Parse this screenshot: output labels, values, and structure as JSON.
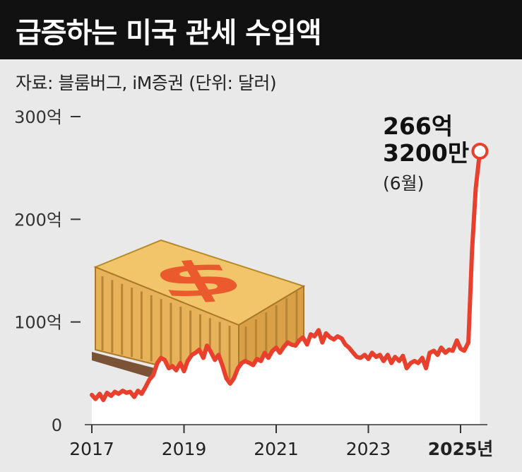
{
  "title": "급증하는 미국 관세 수입액",
  "source": "자료: 블룸버그, iM증권  (단위: 달러)",
  "colors": {
    "line": "#e8402c",
    "area": "#ffffff",
    "background": "#e9e9e9",
    "title_bg": "#111111"
  },
  "illustration": "cargo-container-dollar-icon",
  "annotation": {
    "line1": "266억",
    "line2": "3200만",
    "line3": "(6월)"
  },
  "chart_data": {
    "type": "line",
    "title": "급증하는 미국 관세 수입액",
    "xlabel": "",
    "ylabel": "",
    "xlim": [
      2017,
      2025.5
    ],
    "ylim": [
      0,
      300
    ],
    "y_ticks": [
      {
        "value": 300,
        "label": "300억"
      },
      {
        "value": 200,
        "label": "200억"
      },
      {
        "value": 100,
        "label": "100억"
      },
      {
        "value": 0,
        "label": "0"
      }
    ],
    "x_ticks": [
      {
        "value": 2017,
        "label": "2017"
      },
      {
        "value": 2019,
        "label": "2019"
      },
      {
        "value": 2021,
        "label": "2021"
      },
      {
        "value": 2023,
        "label": "2023"
      },
      {
        "value": 2025,
        "label": "2025년"
      }
    ],
    "series": [
      {
        "unit": "억 달러",
        "x": [
          2017.0,
          2017.08,
          2017.17,
          2017.25,
          2017.33,
          2017.42,
          2017.5,
          2017.58,
          2017.67,
          2017.75,
          2017.83,
          2017.92,
          2018.0,
          2018.08,
          2018.17,
          2018.25,
          2018.33,
          2018.42,
          2018.5,
          2018.58,
          2018.67,
          2018.75,
          2018.83,
          2018.92,
          2019.0,
          2019.08,
          2019.17,
          2019.25,
          2019.33,
          2019.42,
          2019.5,
          2019.58,
          2019.67,
          2019.75,
          2019.83,
          2019.92,
          2020.0,
          2020.08,
          2020.17,
          2020.25,
          2020.33,
          2020.42,
          2020.5,
          2020.58,
          2020.67,
          2020.75,
          2020.83,
          2020.92,
          2021.0,
          2021.08,
          2021.17,
          2021.25,
          2021.33,
          2021.42,
          2021.5,
          2021.58,
          2021.67,
          2021.75,
          2021.83,
          2021.92,
          2022.0,
          2022.08,
          2022.17,
          2022.25,
          2022.33,
          2022.42,
          2022.5,
          2022.58,
          2022.67,
          2022.75,
          2022.83,
          2022.92,
          2023.0,
          2023.08,
          2023.17,
          2023.25,
          2023.33,
          2023.42,
          2023.5,
          2023.58,
          2023.67,
          2023.75,
          2023.83,
          2023.92,
          2024.0,
          2024.08,
          2024.17,
          2024.25,
          2024.33,
          2024.42,
          2024.5,
          2024.58,
          2024.67,
          2024.75,
          2024.83,
          2024.92,
          2025.0,
          2025.08,
          2025.17,
          2025.25,
          2025.33,
          2025.42
        ],
        "values": [
          29,
          25,
          30,
          24,
          31,
          28,
          32,
          30,
          33,
          31,
          32,
          27,
          33,
          30,
          37,
          44,
          48,
          60,
          65,
          63,
          55,
          57,
          53,
          60,
          52,
          62,
          68,
          70,
          73,
          65,
          77,
          71,
          63,
          68,
          58,
          45,
          40,
          45,
          55,
          60,
          62,
          60,
          58,
          64,
          62,
          70,
          65,
          72,
          75,
          70,
          76,
          80,
          78,
          77,
          82,
          85,
          78,
          88,
          86,
          92,
          80,
          89,
          85,
          83,
          86,
          84,
          78,
          75,
          70,
          66,
          65,
          68,
          64,
          70,
          66,
          68,
          62,
          68,
          60,
          66,
          62,
          67,
          55,
          60,
          62,
          60,
          65,
          55,
          70,
          72,
          68,
          75,
          70,
          73,
          72,
          82,
          74,
          72,
          80,
          170,
          230,
          266.32
        ]
      }
    ],
    "grid": false,
    "legend": "none"
  }
}
